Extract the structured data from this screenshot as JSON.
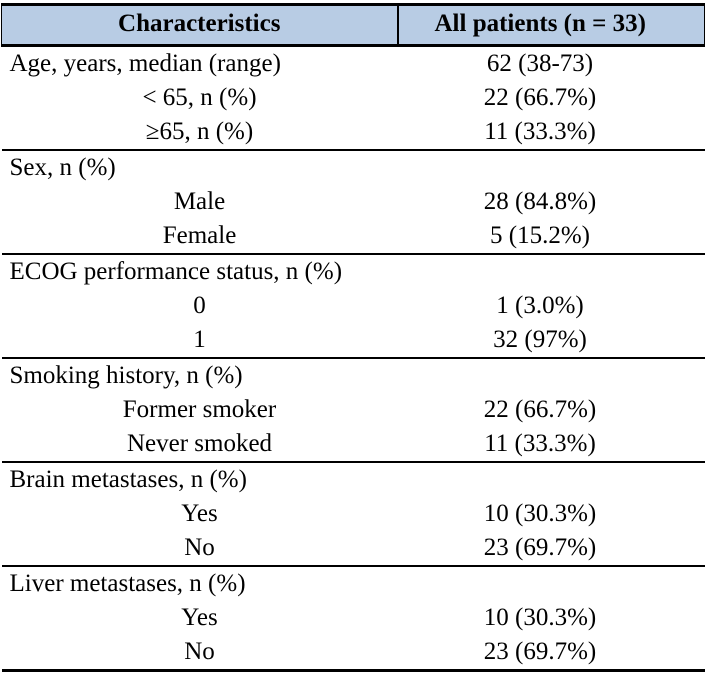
{
  "colors": {
    "header-bg": "#b8cce4",
    "border": "#000000",
    "text": "#000000"
  },
  "table": {
    "columns": [
      "Characteristics",
      "All patients (n = 33)"
    ],
    "rows": [
      {
        "label": "Age, years, median (range)",
        "value": "62 (38-73)"
      },
      {
        "label": "< 65, n (%)",
        "value": "22 (66.7%)"
      },
      {
        "label": "≥65, n (%)",
        "value": "11 (33.3%)"
      },
      {
        "label": "Sex, n (%)",
        "value": ""
      },
      {
        "label": "Male",
        "value": "28 (84.8%)"
      },
      {
        "label": "Female",
        "value": "5 (15.2%)"
      },
      {
        "label": "ECOG performance status, n (%)",
        "value": ""
      },
      {
        "label": "0",
        "value": "1 (3.0%)"
      },
      {
        "label": "1",
        "value": "32 (97%)"
      },
      {
        "label": "Smoking history, n (%)",
        "value": ""
      },
      {
        "label": "Former smoker",
        "value": "22 (66.7%)"
      },
      {
        "label": "Never smoked",
        "value": "11 (33.3%)"
      },
      {
        "label": "Brain metastases, n (%)",
        "value": ""
      },
      {
        "label": "Yes",
        "value": "10 (30.3%)"
      },
      {
        "label": "No",
        "value": "23 (69.7%)"
      },
      {
        "label": "Liver metastases, n (%)",
        "value": ""
      },
      {
        "label": "Yes",
        "value": "10 (30.3%)"
      },
      {
        "label": "No",
        "value": "23 (69.7%)"
      }
    ]
  }
}
